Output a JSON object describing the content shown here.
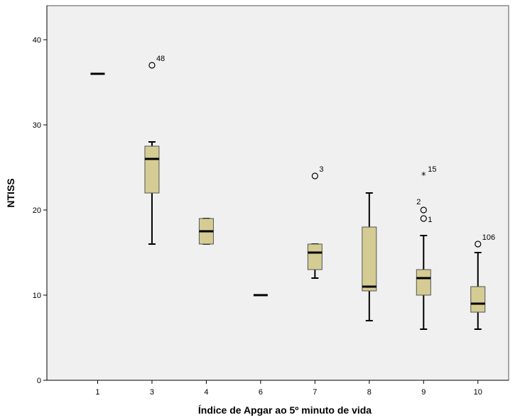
{
  "chart_data": {
    "type": "boxplot",
    "xlabel": "Índice de Apgar ao 5º minuto de vida",
    "ylabel": "NTISS",
    "ylim": [
      0,
      44
    ],
    "yticks": [
      0,
      10,
      20,
      30,
      40
    ],
    "categories": [
      "1",
      "3",
      "4",
      "6",
      "7",
      "8",
      "9",
      "10"
    ],
    "boxes": [
      {
        "category": "1",
        "min": 36,
        "q1": 36,
        "median": 36,
        "q3": 36,
        "max": 36
      },
      {
        "category": "3",
        "min": 16,
        "q1": 22,
        "median": 26,
        "q3": 27.5,
        "max": 28
      },
      {
        "category": "4",
        "min": 16,
        "q1": 16,
        "median": 17.5,
        "q3": 19,
        "max": 19
      },
      {
        "category": "6",
        "min": 10,
        "q1": 10,
        "median": 10,
        "q3": 10,
        "max": 10
      },
      {
        "category": "7",
        "min": 12,
        "q1": 13,
        "median": 15,
        "q3": 16,
        "max": 16
      },
      {
        "category": "8",
        "min": 7,
        "q1": 10.5,
        "median": 11,
        "q3": 18,
        "max": 22
      },
      {
        "category": "9",
        "min": 6,
        "q1": 10,
        "median": 12,
        "q3": 13,
        "max": 17
      },
      {
        "category": "10",
        "min": 6,
        "q1": 8,
        "median": 9,
        "q3": 11,
        "max": 15
      }
    ],
    "outliers": [
      {
        "category": "3",
        "value": 37,
        "label": "48",
        "symbol": "circle"
      },
      {
        "category": "7",
        "value": 24,
        "label": "3",
        "symbol": "circle"
      },
      {
        "category": "9",
        "value": 24,
        "label": "15",
        "symbol": "star"
      },
      {
        "category": "9",
        "value": 20,
        "label": "2",
        "symbol": "circle"
      },
      {
        "category": "9",
        "value": 19,
        "label": "1",
        "symbol": "circle"
      },
      {
        "category": "10",
        "value": 16,
        "label": "106",
        "symbol": "circle"
      }
    ],
    "colors": {
      "plot_background": "#f0f0f0",
      "box_fill": "#d4cc93",
      "stroke": "#000000"
    }
  }
}
